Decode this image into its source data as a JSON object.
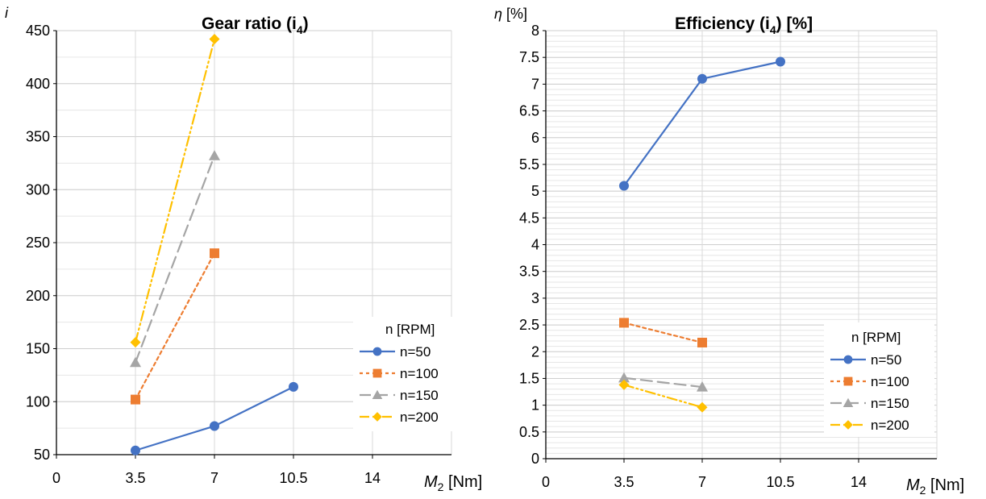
{
  "chart_data": [
    {
      "type": "line",
      "title": "Gear ratio (i",
      "title_sub": "4",
      "title_suffix": ")",
      "ylabel": "i",
      "xlabel_main": "M",
      "xlabel_sub": "2",
      "xlabel_unit": " [Nm]",
      "ylim": [
        50,
        450
      ],
      "xlim": [
        0,
        17.5
      ],
      "yticks": [
        "50",
        "100",
        "150",
        "200",
        "250",
        "300",
        "350",
        "400",
        "450"
      ],
      "xticks": [
        "0",
        "3.5",
        "7",
        "10.5",
        "14"
      ],
      "grid": "on",
      "legend": {
        "title": "n [RPM]",
        "position": "right"
      },
      "series": [
        {
          "name": "n=50",
          "x": [
            3.5,
            7,
            10.5
          ],
          "y": [
            54,
            77,
            114
          ],
          "color": "#4472C4",
          "marker": "circle",
          "dash": "solid"
        },
        {
          "name": "n=100",
          "x": [
            3.5,
            7
          ],
          "y": [
            102,
            240
          ],
          "color": "#ED7D31",
          "marker": "square",
          "dash": "dot"
        },
        {
          "name": "n=150",
          "x": [
            3.5,
            7
          ],
          "y": [
            137,
            332
          ],
          "color": "#A5A5A5",
          "marker": "triangle",
          "dash": "longdash"
        },
        {
          "name": "n=200",
          "x": [
            3.5,
            7
          ],
          "y": [
            156,
            442
          ],
          "color": "#FFC000",
          "marker": "diamond",
          "dash": "dashdotdot"
        }
      ]
    },
    {
      "type": "line",
      "title": "Efficiency (i",
      "title_sub": "4",
      "title_suffix": ")  [%]",
      "ylabel": "η [%]",
      "xlabel_main": "M",
      "xlabel_sub": "2",
      "xlabel_unit": " [Nm]",
      "ylim": [
        0,
        8
      ],
      "xlim": [
        0,
        17.5
      ],
      "yticks": [
        "0",
        "0.5",
        "1",
        "1.5",
        "2",
        "2.5",
        "3",
        "3.5",
        "4",
        "4.5",
        "5",
        "5.5",
        "6",
        "6.5",
        "7",
        "7.5",
        "8"
      ],
      "xticks": [
        "0",
        "3.5",
        "7",
        "10.5",
        "14"
      ],
      "grid": "on",
      "legend": {
        "title": "n [RPM]",
        "position": "bottom-right"
      },
      "series": [
        {
          "name": "n=50",
          "x": [
            3.5,
            7,
            10.5
          ],
          "y": [
            5.1,
            7.1,
            7.42
          ],
          "color": "#4472C4",
          "marker": "circle",
          "dash": "solid"
        },
        {
          "name": "n=100",
          "x": [
            3.5,
            7
          ],
          "y": [
            2.54,
            2.17
          ],
          "color": "#ED7D31",
          "marker": "square",
          "dash": "dot"
        },
        {
          "name": "n=150",
          "x": [
            3.5,
            7
          ],
          "y": [
            1.51,
            1.34
          ],
          "color": "#A5A5A5",
          "marker": "triangle",
          "dash": "longdash"
        },
        {
          "name": "n=200",
          "x": [
            3.5,
            7
          ],
          "y": [
            1.38,
            0.96
          ],
          "color": "#FFC000",
          "marker": "diamond",
          "dash": "dashdotdot"
        }
      ]
    }
  ]
}
